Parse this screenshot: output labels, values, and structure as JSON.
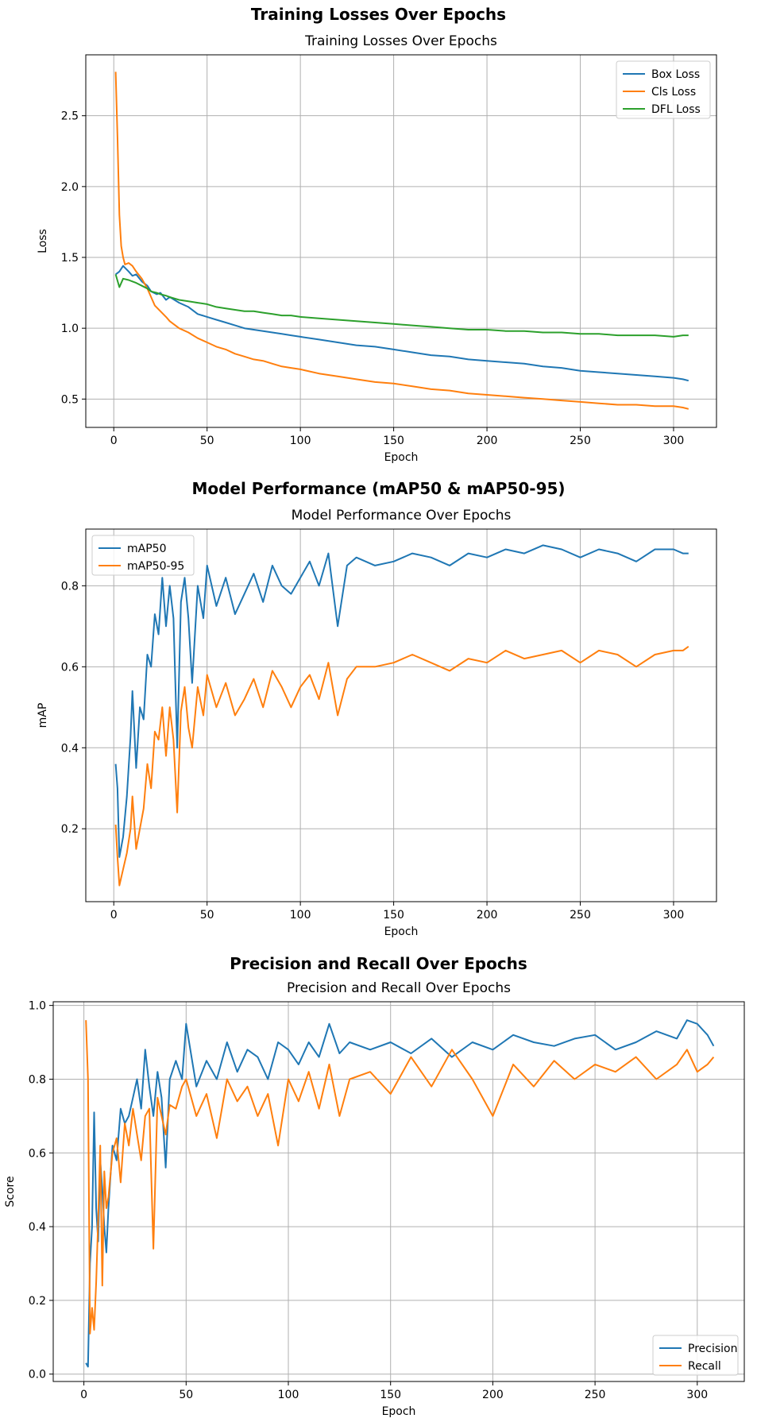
{
  "charts": [
    {
      "suptitle": "Training Losses Over Epochs",
      "title": "Training Losses Over Epochs",
      "xlabel": "Epoch",
      "ylabel": "Loss",
      "legend": "upper right",
      "xticks": [
        0,
        50,
        100,
        150,
        200,
        250,
        300
      ],
      "yticks": [
        0.5,
        1.0,
        1.5,
        2.0,
        2.5
      ],
      "ytick_labels": [
        "0.5",
        "1.0",
        "1.5",
        "2.0",
        "2.5"
      ]
    },
    {
      "suptitle": "Model Performance (mAP50 & mAP50-95)",
      "title": "Model Performance Over Epochs",
      "xlabel": "Epoch",
      "ylabel": "mAP",
      "legend": "upper left",
      "xticks": [
        0,
        50,
        100,
        150,
        200,
        250,
        300
      ],
      "yticks": [
        0.2,
        0.4,
        0.6,
        0.8
      ],
      "ytick_labels": [
        "0.2",
        "0.4",
        "0.6",
        "0.8"
      ]
    },
    {
      "suptitle": "Precision and Recall Over Epochs",
      "title": "Precision and Recall Over Epochs",
      "xlabel": "Epoch",
      "ylabel": "Score",
      "legend": "lower right",
      "xticks": [
        0,
        50,
        100,
        150,
        200,
        250,
        300
      ],
      "yticks": [
        0.0,
        0.2,
        0.4,
        0.6,
        0.8,
        1.0
      ],
      "ytick_labels": [
        "0.0",
        "0.2",
        "0.4",
        "0.6",
        "0.8",
        "1.0"
      ]
    }
  ],
  "chart_data": [
    {
      "type": "line",
      "title": "Training Losses Over Epochs",
      "xlabel": "Epoch",
      "ylabel": "Loss",
      "xlim": [
        -15,
        323
      ],
      "ylim": [
        0.3,
        2.93
      ],
      "grid": true,
      "series": [
        {
          "name": "Box Loss",
          "color": "#1f77b4",
          "x": [
            1,
            3,
            5,
            8,
            10,
            12,
            15,
            18,
            20,
            23,
            25,
            28,
            30,
            35,
            40,
            45,
            50,
            55,
            60,
            65,
            70,
            75,
            80,
            85,
            90,
            95,
            100,
            110,
            120,
            130,
            140,
            150,
            160,
            170,
            180,
            190,
            200,
            210,
            220,
            230,
            240,
            250,
            260,
            270,
            280,
            290,
            300,
            305,
            308
          ],
          "y": [
            1.38,
            1.4,
            1.44,
            1.4,
            1.37,
            1.38,
            1.33,
            1.3,
            1.26,
            1.24,
            1.25,
            1.2,
            1.22,
            1.18,
            1.15,
            1.1,
            1.08,
            1.06,
            1.04,
            1.02,
            1.0,
            0.99,
            0.98,
            0.97,
            0.96,
            0.95,
            0.94,
            0.92,
            0.9,
            0.88,
            0.87,
            0.85,
            0.83,
            0.81,
            0.8,
            0.78,
            0.77,
            0.76,
            0.75,
            0.73,
            0.72,
            0.7,
            0.69,
            0.68,
            0.67,
            0.66,
            0.65,
            0.64,
            0.63
          ]
        },
        {
          "name": "Cls Loss",
          "color": "#ff7f0e",
          "x": [
            1,
            2,
            3,
            4,
            5,
            6,
            8,
            10,
            12,
            15,
            18,
            20,
            22,
            25,
            28,
            30,
            35,
            40,
            45,
            50,
            55,
            60,
            65,
            70,
            75,
            80,
            85,
            90,
            95,
            100,
            110,
            120,
            130,
            140,
            150,
            160,
            170,
            180,
            190,
            200,
            210,
            220,
            230,
            240,
            250,
            260,
            270,
            280,
            290,
            300,
            305,
            308
          ],
          "y": [
            2.81,
            2.35,
            1.8,
            1.58,
            1.5,
            1.45,
            1.46,
            1.44,
            1.4,
            1.35,
            1.28,
            1.22,
            1.16,
            1.12,
            1.08,
            1.05,
            1.0,
            0.97,
            0.93,
            0.9,
            0.87,
            0.85,
            0.82,
            0.8,
            0.78,
            0.77,
            0.75,
            0.73,
            0.72,
            0.71,
            0.68,
            0.66,
            0.64,
            0.62,
            0.61,
            0.59,
            0.57,
            0.56,
            0.54,
            0.53,
            0.52,
            0.51,
            0.5,
            0.49,
            0.48,
            0.47,
            0.46,
            0.46,
            0.45,
            0.45,
            0.44,
            0.43
          ]
        },
        {
          "name": "DFL Loss",
          "color": "#2ca02c",
          "x": [
            1,
            3,
            5,
            8,
            10,
            12,
            15,
            18,
            20,
            23,
            25,
            28,
            30,
            35,
            40,
            45,
            50,
            55,
            60,
            65,
            70,
            75,
            80,
            85,
            90,
            95,
            100,
            110,
            120,
            130,
            140,
            150,
            160,
            170,
            180,
            190,
            200,
            210,
            220,
            230,
            240,
            250,
            260,
            270,
            280,
            290,
            300,
            305,
            308
          ],
          "y": [
            1.38,
            1.29,
            1.35,
            1.34,
            1.33,
            1.32,
            1.3,
            1.28,
            1.26,
            1.25,
            1.24,
            1.23,
            1.22,
            1.2,
            1.19,
            1.18,
            1.17,
            1.15,
            1.14,
            1.13,
            1.12,
            1.12,
            1.11,
            1.1,
            1.09,
            1.09,
            1.08,
            1.07,
            1.06,
            1.05,
            1.04,
            1.03,
            1.02,
            1.01,
            1.0,
            0.99,
            0.99,
            0.98,
            0.98,
            0.97,
            0.97,
            0.96,
            0.96,
            0.95,
            0.95,
            0.95,
            0.94,
            0.95,
            0.95
          ]
        }
      ]
    },
    {
      "type": "line",
      "title": "Model Performance Over Epochs",
      "xlabel": "Epoch",
      "ylabel": "mAP",
      "xlim": [
        -15,
        323
      ],
      "ylim": [
        0.02,
        0.94
      ],
      "grid": true,
      "series": [
        {
          "name": "mAP50",
          "color": "#1f77b4",
          "x": [
            1,
            2,
            3,
            5,
            7,
            9,
            10,
            12,
            14,
            16,
            18,
            20,
            22,
            24,
            26,
            28,
            30,
            32,
            34,
            36,
            38,
            40,
            42,
            45,
            48,
            50,
            55,
            60,
            65,
            70,
            75,
            80,
            85,
            90,
            95,
            100,
            105,
            110,
            115,
            120,
            125,
            130,
            140,
            150,
            160,
            170,
            180,
            190,
            200,
            210,
            220,
            230,
            240,
            250,
            260,
            270,
            280,
            290,
            300,
            305,
            308
          ],
          "y": [
            0.36,
            0.3,
            0.13,
            0.18,
            0.28,
            0.43,
            0.54,
            0.35,
            0.5,
            0.47,
            0.63,
            0.6,
            0.73,
            0.68,
            0.82,
            0.7,
            0.8,
            0.72,
            0.4,
            0.76,
            0.82,
            0.72,
            0.56,
            0.8,
            0.72,
            0.85,
            0.75,
            0.82,
            0.73,
            0.78,
            0.83,
            0.76,
            0.85,
            0.8,
            0.78,
            0.82,
            0.86,
            0.8,
            0.88,
            0.7,
            0.85,
            0.87,
            0.85,
            0.86,
            0.88,
            0.87,
            0.85,
            0.88,
            0.87,
            0.89,
            0.88,
            0.9,
            0.89,
            0.87,
            0.89,
            0.88,
            0.86,
            0.89,
            0.89,
            0.88,
            0.88
          ]
        },
        {
          "name": "mAP50-95",
          "color": "#ff7f0e",
          "x": [
            1,
            2,
            3,
            5,
            7,
            9,
            10,
            12,
            14,
            16,
            18,
            20,
            22,
            24,
            26,
            28,
            30,
            32,
            34,
            36,
            38,
            40,
            42,
            45,
            48,
            50,
            55,
            60,
            65,
            70,
            75,
            80,
            85,
            90,
            95,
            100,
            105,
            110,
            115,
            120,
            125,
            130,
            140,
            150,
            160,
            170,
            180,
            190,
            200,
            210,
            220,
            230,
            240,
            250,
            260,
            270,
            280,
            290,
            300,
            305,
            308
          ],
          "y": [
            0.21,
            0.13,
            0.06,
            0.1,
            0.14,
            0.2,
            0.28,
            0.15,
            0.2,
            0.25,
            0.36,
            0.3,
            0.44,
            0.42,
            0.5,
            0.38,
            0.5,
            0.42,
            0.24,
            0.49,
            0.55,
            0.45,
            0.4,
            0.55,
            0.48,
            0.58,
            0.5,
            0.56,
            0.48,
            0.52,
            0.57,
            0.5,
            0.59,
            0.55,
            0.5,
            0.55,
            0.58,
            0.52,
            0.61,
            0.48,
            0.57,
            0.6,
            0.6,
            0.61,
            0.63,
            0.61,
            0.59,
            0.62,
            0.61,
            0.64,
            0.62,
            0.63,
            0.64,
            0.61,
            0.64,
            0.63,
            0.6,
            0.63,
            0.64,
            0.64,
            0.65
          ]
        }
      ]
    },
    {
      "type": "line",
      "title": "Precision and Recall Over Epochs",
      "xlabel": "Epoch",
      "ylabel": "Score",
      "xlim": [
        -15,
        323
      ],
      "ylim": [
        -0.02,
        1.01
      ],
      "grid": true,
      "series": [
        {
          "name": "Precision",
          "color": "#1f77b4",
          "x": [
            1,
            2,
            3,
            4,
            5,
            6,
            7,
            8,
            9,
            10,
            11,
            12,
            14,
            16,
            18,
            20,
            22,
            24,
            26,
            28,
            30,
            32,
            34,
            36,
            38,
            40,
            42,
            45,
            48,
            50,
            55,
            60,
            65,
            70,
            75,
            80,
            85,
            90,
            95,
            100,
            105,
            110,
            115,
            120,
            125,
            130,
            140,
            150,
            160,
            170,
            180,
            190,
            200,
            210,
            220,
            230,
            240,
            250,
            260,
            270,
            280,
            290,
            295,
            300,
            305,
            308
          ],
          "y": [
            0.03,
            0.02,
            0.3,
            0.4,
            0.71,
            0.45,
            0.36,
            0.58,
            0.5,
            0.4,
            0.33,
            0.45,
            0.62,
            0.58,
            0.72,
            0.68,
            0.7,
            0.75,
            0.8,
            0.72,
            0.88,
            0.78,
            0.7,
            0.82,
            0.75,
            0.56,
            0.8,
            0.85,
            0.8,
            0.95,
            0.78,
            0.85,
            0.8,
            0.9,
            0.82,
            0.88,
            0.86,
            0.8,
            0.9,
            0.88,
            0.84,
            0.9,
            0.86,
            0.95,
            0.87,
            0.9,
            0.88,
            0.9,
            0.87,
            0.91,
            0.86,
            0.9,
            0.88,
            0.92,
            0.9,
            0.89,
            0.91,
            0.92,
            0.88,
            0.9,
            0.93,
            0.91,
            0.96,
            0.95,
            0.92,
            0.89
          ]
        },
        {
          "name": "Recall",
          "color": "#ff7f0e",
          "x": [
            1,
            2,
            3,
            4,
            5,
            6,
            7,
            8,
            9,
            10,
            11,
            12,
            14,
            16,
            18,
            20,
            22,
            24,
            26,
            28,
            30,
            32,
            34,
            36,
            38,
            40,
            42,
            45,
            48,
            50,
            55,
            60,
            65,
            70,
            75,
            80,
            85,
            90,
            95,
            100,
            105,
            110,
            115,
            120,
            125,
            130,
            140,
            150,
            160,
            170,
            180,
            190,
            200,
            210,
            220,
            230,
            240,
            250,
            260,
            270,
            280,
            290,
            295,
            300,
            305,
            308
          ],
          "y": [
            0.96,
            0.8,
            0.11,
            0.18,
            0.12,
            0.25,
            0.42,
            0.62,
            0.24,
            0.55,
            0.45,
            0.48,
            0.6,
            0.64,
            0.52,
            0.68,
            0.62,
            0.72,
            0.65,
            0.58,
            0.7,
            0.72,
            0.34,
            0.75,
            0.7,
            0.65,
            0.73,
            0.72,
            0.78,
            0.8,
            0.7,
            0.76,
            0.64,
            0.8,
            0.74,
            0.78,
            0.7,
            0.76,
            0.62,
            0.8,
            0.74,
            0.82,
            0.72,
            0.84,
            0.7,
            0.8,
            0.82,
            0.76,
            0.86,
            0.78,
            0.88,
            0.8,
            0.7,
            0.84,
            0.78,
            0.85,
            0.8,
            0.84,
            0.82,
            0.86,
            0.8,
            0.84,
            0.88,
            0.82,
            0.84,
            0.86
          ]
        }
      ]
    }
  ]
}
